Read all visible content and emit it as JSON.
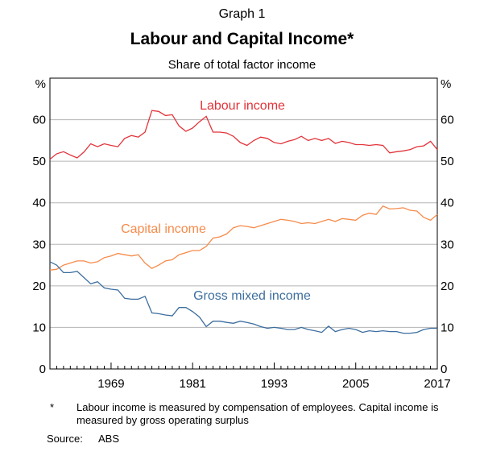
{
  "header": {
    "graph_label": "Graph 1",
    "title": "Labour and Capital Income*",
    "subtitle": "Share of total factor income"
  },
  "footnote": {
    "marker": "*",
    "text": "Labour income is measured by compensation of employees. Capital income is measured by gross operating surplus"
  },
  "source": {
    "label": "Source:",
    "value": "ABS"
  },
  "chart_data": {
    "type": "line",
    "y_unit_left": "%",
    "y_unit_right": "%",
    "xlim": [
      1960,
      2017
    ],
    "ylim": [
      0,
      70
    ],
    "y_ticks": [
      0,
      10,
      20,
      30,
      40,
      50,
      60
    ],
    "x_tick_labels": [
      "1969",
      "1981",
      "1993",
      "2005",
      "2017"
    ],
    "grid": true,
    "series": [
      {
        "name": "Labour income",
        "color": "#e2343a",
        "points": [
          [
            1960,
            50.5
          ],
          [
            1961,
            51.8
          ],
          [
            1962,
            52.3
          ],
          [
            1963,
            51.5
          ],
          [
            1964,
            50.8
          ],
          [
            1965,
            52.2
          ],
          [
            1966,
            54.2
          ],
          [
            1967,
            53.5
          ],
          [
            1968,
            54.2
          ],
          [
            1969,
            53.8
          ],
          [
            1970,
            53.5
          ],
          [
            1971,
            55.5
          ],
          [
            1972,
            56.2
          ],
          [
            1973,
            55.8
          ],
          [
            1974,
            57.0
          ],
          [
            1975,
            62.2
          ],
          [
            1976,
            62.0
          ],
          [
            1977,
            61.0
          ],
          [
            1978,
            61.2
          ],
          [
            1979,
            58.5
          ],
          [
            1980,
            57.2
          ],
          [
            1981,
            58.0
          ],
          [
            1982,
            59.5
          ],
          [
            1983,
            60.8
          ],
          [
            1984,
            57.0
          ],
          [
            1985,
            57.0
          ],
          [
            1986,
            56.8
          ],
          [
            1987,
            56.0
          ],
          [
            1988,
            54.5
          ],
          [
            1989,
            53.8
          ],
          [
            1990,
            55.0
          ],
          [
            1991,
            55.8
          ],
          [
            1992,
            55.5
          ],
          [
            1993,
            54.5
          ],
          [
            1994,
            54.2
          ],
          [
            1995,
            54.8
          ],
          [
            1996,
            55.2
          ],
          [
            1997,
            56.0
          ],
          [
            1998,
            55.0
          ],
          [
            1999,
            55.5
          ],
          [
            2000,
            55.0
          ],
          [
            2001,
            55.5
          ],
          [
            2002,
            54.3
          ],
          [
            2003,
            54.8
          ],
          [
            2004,
            54.5
          ],
          [
            2005,
            54.0
          ],
          [
            2006,
            54.0
          ],
          [
            2007,
            53.8
          ],
          [
            2008,
            54.0
          ],
          [
            2009,
            53.8
          ],
          [
            2010,
            52.0
          ],
          [
            2011,
            52.3
          ],
          [
            2012,
            52.5
          ],
          [
            2013,
            52.8
          ],
          [
            2014,
            53.5
          ],
          [
            2015,
            53.7
          ],
          [
            2016,
            54.8
          ],
          [
            2017,
            52.8
          ]
        ]
      },
      {
        "name": "Capital income",
        "color": "#f68b4b",
        "points": [
          [
            1960,
            23.8
          ],
          [
            1961,
            24.0
          ],
          [
            1962,
            25.0
          ],
          [
            1963,
            25.5
          ],
          [
            1964,
            26.0
          ],
          [
            1965,
            26.0
          ],
          [
            1966,
            25.5
          ],
          [
            1967,
            25.8
          ],
          [
            1968,
            26.8
          ],
          [
            1969,
            27.2
          ],
          [
            1970,
            27.8
          ],
          [
            1971,
            27.5
          ],
          [
            1972,
            27.2
          ],
          [
            1973,
            27.5
          ],
          [
            1974,
            25.5
          ],
          [
            1975,
            24.2
          ],
          [
            1976,
            25.0
          ],
          [
            1977,
            26.0
          ],
          [
            1978,
            26.3
          ],
          [
            1979,
            27.5
          ],
          [
            1980,
            28.0
          ],
          [
            1981,
            28.5
          ],
          [
            1982,
            28.5
          ],
          [
            1983,
            29.5
          ],
          [
            1984,
            31.5
          ],
          [
            1985,
            31.8
          ],
          [
            1986,
            32.5
          ],
          [
            1987,
            34.0
          ],
          [
            1988,
            34.5
          ],
          [
            1989,
            34.3
          ],
          [
            1990,
            34.0
          ],
          [
            1991,
            34.5
          ],
          [
            1992,
            35.0
          ],
          [
            1993,
            35.5
          ],
          [
            1994,
            36.0
          ],
          [
            1995,
            35.8
          ],
          [
            1996,
            35.5
          ],
          [
            1997,
            35.0
          ],
          [
            1998,
            35.2
          ],
          [
            1999,
            35.0
          ],
          [
            2000,
            35.5
          ],
          [
            2001,
            36.0
          ],
          [
            2002,
            35.5
          ],
          [
            2003,
            36.2
          ],
          [
            2004,
            36.0
          ],
          [
            2005,
            35.8
          ],
          [
            2006,
            37.0
          ],
          [
            2007,
            37.5
          ],
          [
            2008,
            37.2
          ],
          [
            2009,
            39.2
          ],
          [
            2010,
            38.5
          ],
          [
            2011,
            38.6
          ],
          [
            2012,
            38.8
          ],
          [
            2013,
            38.2
          ],
          [
            2014,
            38.0
          ],
          [
            2015,
            36.5
          ],
          [
            2016,
            35.8
          ],
          [
            2017,
            37.2
          ]
        ]
      },
      {
        "name": "Gross mixed income",
        "color": "#3c6e9f",
        "points": [
          [
            1960,
            25.8
          ],
          [
            1961,
            25.0
          ],
          [
            1962,
            23.2
          ],
          [
            1963,
            23.2
          ],
          [
            1964,
            23.5
          ],
          [
            1965,
            22.0
          ],
          [
            1966,
            20.5
          ],
          [
            1967,
            21.0
          ],
          [
            1968,
            19.5
          ],
          [
            1969,
            19.2
          ],
          [
            1970,
            19.0
          ],
          [
            1971,
            17.0
          ],
          [
            1972,
            16.8
          ],
          [
            1973,
            16.8
          ],
          [
            1974,
            17.5
          ],
          [
            1975,
            13.5
          ],
          [
            1976,
            13.3
          ],
          [
            1977,
            13.0
          ],
          [
            1978,
            12.8
          ],
          [
            1979,
            14.8
          ],
          [
            1980,
            14.8
          ],
          [
            1981,
            13.8
          ],
          [
            1982,
            12.5
          ],
          [
            1983,
            10.2
          ],
          [
            1984,
            11.5
          ],
          [
            1985,
            11.5
          ],
          [
            1986,
            11.2
          ],
          [
            1987,
            11.0
          ],
          [
            1988,
            11.5
          ],
          [
            1989,
            11.2
          ],
          [
            1990,
            10.8
          ],
          [
            1991,
            10.2
          ],
          [
            1992,
            9.8
          ],
          [
            1993,
            10.0
          ],
          [
            1994,
            9.8
          ],
          [
            1995,
            9.5
          ],
          [
            1996,
            9.5
          ],
          [
            1997,
            10.0
          ],
          [
            1998,
            9.5
          ],
          [
            1999,
            9.2
          ],
          [
            2000,
            8.8
          ],
          [
            2001,
            10.3
          ],
          [
            2002,
            9.0
          ],
          [
            2003,
            9.5
          ],
          [
            2004,
            9.8
          ],
          [
            2005,
            9.5
          ],
          [
            2006,
            8.8
          ],
          [
            2007,
            9.2
          ],
          [
            2008,
            9.0
          ],
          [
            2009,
            9.2
          ],
          [
            2010,
            9.0
          ],
          [
            2011,
            9.0
          ],
          [
            2012,
            8.6
          ],
          [
            2013,
            8.6
          ],
          [
            2014,
            8.8
          ],
          [
            2015,
            9.5
          ],
          [
            2016,
            9.8
          ],
          [
            2017,
            9.8
          ]
        ]
      }
    ],
    "annotations": [
      {
        "text": "Labour income",
        "series": "Labour income"
      },
      {
        "text": "Capital income",
        "series": "Capital income"
      },
      {
        "text": "Gross mixed income",
        "series": "Gross mixed income"
      }
    ]
  }
}
